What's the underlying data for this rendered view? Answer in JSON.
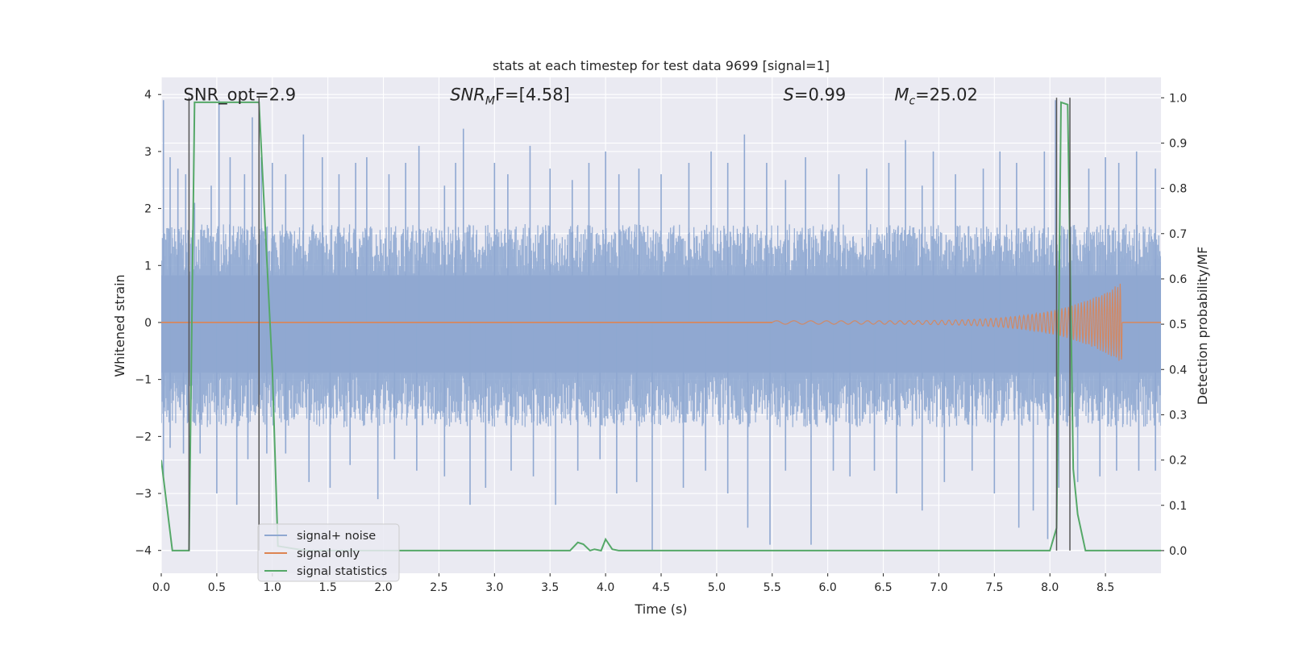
{
  "chart_data": {
    "type": "line",
    "title": "stats at each timestep for test data 9699 [signal=1]",
    "xlabel": "Time (s)",
    "ylabel": "Whitened strain",
    "ylabel_right": "Detection probability/MF",
    "xlim": [
      0.0,
      9.0
    ],
    "ylim": [
      -4.4,
      4.3
    ],
    "ylim_right": [
      -0.05,
      1.045
    ],
    "x_ticks": [
      "0.0",
      "0.5",
      "1.0",
      "1.5",
      "2.0",
      "2.5",
      "3.0",
      "3.5",
      "4.0",
      "4.5",
      "5.0",
      "5.5",
      "6.0",
      "6.5",
      "7.0",
      "7.5",
      "8.0",
      "8.5"
    ],
    "y_ticks": [
      "4",
      "3",
      "2",
      "1",
      "0",
      "−1",
      "−2",
      "−3",
      "−4"
    ],
    "y_ticks_right": [
      "1.0",
      "0.9",
      "0.8",
      "0.7",
      "0.6",
      "0.5",
      "0.4",
      "0.3",
      "0.2",
      "0.1",
      "0.0"
    ],
    "grid": true,
    "legend_position": "lower-left",
    "annotations": [
      {
        "prefix": "SNR_opt=2.9",
        "sub": "",
        "suffix": "",
        "italic": false,
        "x": 0.2
      },
      {
        "prefix": "SNR",
        "sub": "M",
        "suffix": "F=[4.58]",
        "italic": true,
        "x": 2.6
      },
      {
        "prefix": "S",
        "sub": "",
        "suffix": "=0.99",
        "italic": true,
        "x": 5.6
      },
      {
        "prefix": "M",
        "sub": "c",
        "suffix": "=25.02",
        "italic": true,
        "x": 6.6
      }
    ],
    "annotation_y": 3.9,
    "series": [
      {
        "name": "signal+ noise",
        "color": "#8fa8d1",
        "axis": "left",
        "noise_envelope": [
          1.5,
          -1.6
        ],
        "peaks_up": [
          [
            0.02,
            3.9
          ],
          [
            0.08,
            2.9
          ],
          [
            0.15,
            2.7
          ],
          [
            0.22,
            2.6
          ],
          [
            0.3,
            2.1
          ],
          [
            0.45,
            2.4
          ],
          [
            0.52,
            3.9
          ],
          [
            0.62,
            2.9
          ],
          [
            0.75,
            2.6
          ],
          [
            0.82,
            3.6
          ],
          [
            0.9,
            2.9
          ],
          [
            1.0,
            2.8
          ],
          [
            1.12,
            2.6
          ],
          [
            1.28,
            3.3
          ],
          [
            1.45,
            2.9
          ],
          [
            1.6,
            2.6
          ],
          [
            1.75,
            2.8
          ],
          [
            1.85,
            2.9
          ],
          [
            2.05,
            2.6
          ],
          [
            2.2,
            2.8
          ],
          [
            2.32,
            3.1
          ],
          [
            2.55,
            2.4
          ],
          [
            2.65,
            2.8
          ],
          [
            2.72,
            3.4
          ],
          [
            3.0,
            2.8
          ],
          [
            3.12,
            2.6
          ],
          [
            3.32,
            3.1
          ],
          [
            3.5,
            2.7
          ],
          [
            3.7,
            2.5
          ],
          [
            3.85,
            2.8
          ],
          [
            4.0,
            3.0
          ],
          [
            4.12,
            2.6
          ],
          [
            4.3,
            2.7
          ],
          [
            4.5,
            2.6
          ],
          [
            4.75,
            2.8
          ],
          [
            4.95,
            3.0
          ],
          [
            5.1,
            2.8
          ],
          [
            5.25,
            3.3
          ],
          [
            5.45,
            2.8
          ],
          [
            5.62,
            2.5
          ],
          [
            5.8,
            2.9
          ],
          [
            6.1,
            2.6
          ],
          [
            6.35,
            2.7
          ],
          [
            6.55,
            2.8
          ],
          [
            6.7,
            3.2
          ],
          [
            6.85,
            2.4
          ],
          [
            6.95,
            3.0
          ],
          [
            7.15,
            2.6
          ],
          [
            7.4,
            2.7
          ],
          [
            7.55,
            3.0
          ],
          [
            7.7,
            2.8
          ],
          [
            7.95,
            3.0
          ],
          [
            8.05,
            3.9
          ],
          [
            8.35,
            2.7
          ],
          [
            8.5,
            2.9
          ],
          [
            8.62,
            2.8
          ],
          [
            8.78,
            3.0
          ],
          [
            8.95,
            2.7
          ]
        ],
        "peaks_down": [
          [
            0.02,
            -2.7
          ],
          [
            0.08,
            -2.2
          ],
          [
            0.2,
            -2.3
          ],
          [
            0.35,
            -2.3
          ],
          [
            0.5,
            -3.0
          ],
          [
            0.68,
            -3.2
          ],
          [
            0.78,
            -2.4
          ],
          [
            0.95,
            -2.3
          ],
          [
            1.12,
            -2.3
          ],
          [
            1.33,
            -2.8
          ],
          [
            1.52,
            -2.9
          ],
          [
            1.7,
            -2.5
          ],
          [
            1.95,
            -3.1
          ],
          [
            2.1,
            -2.4
          ],
          [
            2.3,
            -2.6
          ],
          [
            2.55,
            -2.7
          ],
          [
            2.78,
            -3.2
          ],
          [
            2.92,
            -2.9
          ],
          [
            3.15,
            -2.6
          ],
          [
            3.35,
            -2.7
          ],
          [
            3.55,
            -3.2
          ],
          [
            3.75,
            -2.6
          ],
          [
            3.95,
            -2.4
          ],
          [
            4.1,
            -3.0
          ],
          [
            4.28,
            -2.8
          ],
          [
            4.42,
            -4.0
          ],
          [
            4.7,
            -2.9
          ],
          [
            4.9,
            -2.6
          ],
          [
            5.1,
            -3.0
          ],
          [
            5.28,
            -3.6
          ],
          [
            5.48,
            -3.9
          ],
          [
            5.62,
            -2.6
          ],
          [
            5.85,
            -3.9
          ],
          [
            6.05,
            -2.6
          ],
          [
            6.2,
            -2.7
          ],
          [
            6.42,
            -2.6
          ],
          [
            6.62,
            -3.0
          ],
          [
            6.85,
            -3.3
          ],
          [
            7.05,
            -2.8
          ],
          [
            7.3,
            -2.6
          ],
          [
            7.5,
            -3.0
          ],
          [
            7.72,
            -3.6
          ],
          [
            7.85,
            -3.3
          ],
          [
            7.98,
            -3.8
          ],
          [
            8.08,
            -2.9
          ],
          [
            8.25,
            -2.8
          ],
          [
            8.45,
            -2.7
          ],
          [
            8.6,
            -2.6
          ],
          [
            8.8,
            -2.6
          ],
          [
            8.95,
            -2.6
          ]
        ]
      },
      {
        "name": "signal only",
        "color": "#dd8452",
        "axis": "left",
        "chirp_start": 5.5,
        "chirp_end": 8.65,
        "chirp_max_amp": 0.68
      },
      {
        "name": "signal statistics",
        "color": "#55a868",
        "axis": "right",
        "x": [
          0.0,
          0.05,
          0.1,
          0.25,
          0.3,
          0.35,
          0.6,
          0.88,
          1.0,
          1.05,
          1.3,
          1.8,
          2.3,
          3.0,
          3.68,
          3.75,
          3.8,
          3.86,
          3.9,
          3.96,
          4.0,
          4.06,
          4.12,
          4.3,
          5.0,
          6.0,
          7.0,
          8.0,
          8.06,
          8.1,
          8.16,
          8.21,
          8.25,
          8.32,
          8.5,
          9.0
        ],
        "y": [
          0.2,
          0.1,
          0.0,
          0.0,
          0.99,
          0.99,
          0.99,
          0.99,
          0.4,
          0.01,
          0.0,
          0.0,
          0.0,
          0.0,
          0.0,
          0.018,
          0.014,
          0.0,
          0.003,
          0.0,
          0.025,
          0.003,
          0.0,
          0.0,
          0.0,
          0.0,
          0.0,
          0.0,
          0.05,
          0.99,
          0.985,
          0.18,
          0.08,
          0.0,
          0.0,
          0.0
        ]
      }
    ],
    "vlines": [
      0.25,
      0.88,
      8.06,
      8.18
    ],
    "vline_color": "#555555"
  }
}
